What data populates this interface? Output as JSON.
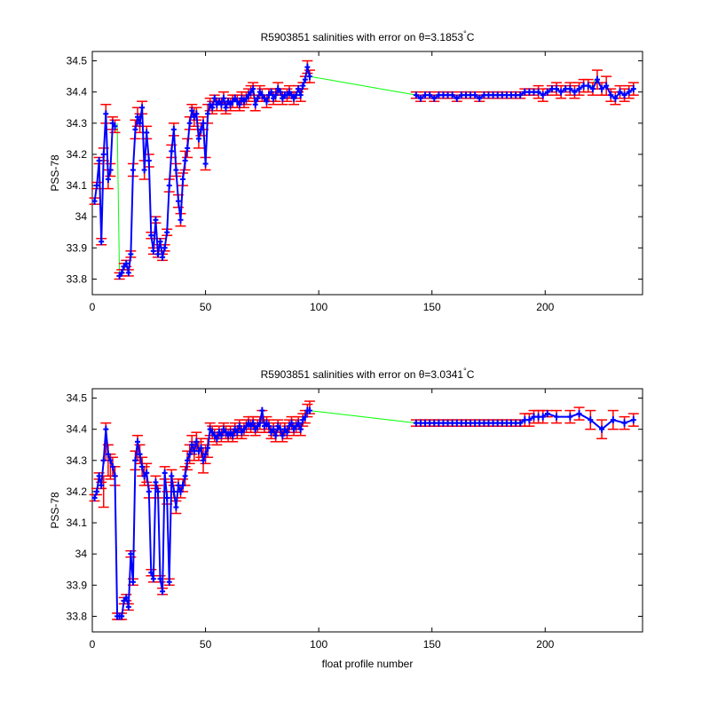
{
  "chart_data": [
    {
      "type": "line",
      "title_prefix": "R5903851 salinities with error on θ=3.1853",
      "title_unit": "C",
      "title_degree": "°",
      "xlabel": "",
      "ylabel": "PSS-78",
      "xlim": [
        0,
        243
      ],
      "ylim": [
        33.75,
        34.53
      ],
      "xticks": [
        0,
        50,
        100,
        150,
        200
      ],
      "yticks": [
        33.8,
        33.9,
        34,
        34.1,
        34.2,
        34.3,
        34.4,
        34.5
      ],
      "ytick_labels": [
        "33.8",
        "33.9",
        "34",
        "34.1",
        "34.2",
        "34.3",
        "34.4",
        "34.5"
      ],
      "colors": {
        "mapped": "#ff0000",
        "float": "#0000ff",
        "connector": "#00ff00"
      },
      "series": [
        {
          "x": [
            1,
            2,
            3,
            4,
            5,
            6,
            7,
            8,
            9,
            10,
            11,
            12,
            13,
            14,
            15,
            16,
            17,
            18,
            19,
            20,
            21,
            22,
            23,
            24,
            25,
            26,
            27,
            28,
            29,
            30,
            31,
            32,
            33,
            34,
            35,
            36,
            37,
            38,
            39,
            40,
            41,
            42,
            43,
            44,
            45,
            46,
            47,
            48,
            49,
            50,
            51,
            52,
            53,
            54,
            55,
            56,
            57,
            58,
            59,
            60,
            61,
            62,
            63,
            64,
            65,
            66,
            67,
            68,
            69,
            70,
            71,
            72,
            73,
            74,
            75,
            76,
            77,
            78,
            79,
            80,
            81,
            82,
            83,
            84,
            85,
            86,
            87,
            88,
            89,
            90,
            91,
            92,
            93,
            94,
            95,
            96
          ],
          "values": [
            34.05,
            34.1,
            34.18,
            33.92,
            34.2,
            34.33,
            34.12,
            34.15,
            34.3,
            34.29,
            null,
            33.81,
            33.82,
            33.84,
            33.85,
            33.82,
            33.88,
            34.15,
            34.28,
            34.32,
            34.3,
            34.35,
            34.15,
            34.27,
            34.18,
            33.94,
            33.89,
            33.99,
            33.88,
            33.92,
            33.87,
            33.9,
            33.95,
            34.1,
            34.21,
            34.28,
            34.15,
            34.05,
            33.99,
            34.12,
            34.18,
            34.22,
            34.3,
            34.34,
            34.32,
            34.33,
            34.25,
            34.28,
            34.3,
            34.17,
            34.33,
            34.36,
            34.35,
            34.38,
            34.36,
            34.37,
            34.36,
            34.38,
            34.35,
            34.37,
            34.36,
            34.37,
            34.38,
            34.37,
            34.36,
            34.38,
            34.37,
            34.38,
            34.39,
            34.4,
            34.41,
            34.36,
            34.38,
            34.4,
            34.39,
            34.38,
            34.37,
            34.39,
            34.4,
            34.38,
            34.39,
            34.41,
            34.4,
            34.38,
            34.39,
            34.39,
            34.4,
            34.39,
            34.38,
            34.39,
            34.41,
            34.39,
            34.42,
            34.44,
            34.48,
            34.45
          ],
          "err": [
            0.01,
            0.01,
            0.01,
            0.01,
            0.02,
            0.03,
            0.03,
            0.02,
            0.02,
            0.02,
            null,
            0.01,
            0.01,
            0.01,
            0.01,
            0.01,
            0.01,
            0.02,
            0.03,
            0.03,
            0.03,
            0.02,
            0.03,
            0.02,
            0.02,
            0.01,
            0.01,
            0.01,
            0.01,
            0.01,
            0.01,
            0.01,
            0.01,
            0.02,
            0.02,
            0.02,
            0.02,
            0.02,
            0.02,
            0.02,
            0.03,
            0.03,
            0.02,
            0.02,
            0.03,
            0.02,
            0.03,
            0.02,
            0.02,
            0.02,
            0.03,
            0.02,
            0.02,
            0.01,
            0.02,
            0.01,
            0.02,
            0.02,
            0.02,
            0.01,
            0.02,
            0.02,
            0.01,
            0.02,
            0.02,
            0.02,
            0.02,
            0.02,
            0.02,
            0.02,
            0.02,
            0.02,
            0.01,
            0.02,
            0.02,
            0.01,
            0.02,
            0.02,
            0.01,
            0.02,
            0.02,
            0.02,
            0.01,
            0.02,
            0.01,
            0.02,
            0.02,
            0.01,
            0.02,
            0.01,
            0.01,
            0.02,
            0.01,
            0.01,
            0.02,
            0.02
          ]
        },
        {
          "x": [
            143,
            145,
            147,
            149,
            151,
            153,
            155,
            157,
            159,
            161,
            163,
            165,
            167,
            169,
            171,
            173,
            175,
            177,
            179,
            181,
            183,
            185,
            187,
            189,
            191,
            193,
            195,
            197,
            199,
            201,
            203,
            205,
            207,
            209,
            211,
            213,
            215,
            217,
            219,
            221,
            223,
            225,
            227,
            229,
            231,
            233,
            235,
            237,
            239
          ],
          "values": [
            34.39,
            34.38,
            34.39,
            34.39,
            34.38,
            34.39,
            34.39,
            34.39,
            34.39,
            34.38,
            34.39,
            34.39,
            34.39,
            34.39,
            34.38,
            34.39,
            34.39,
            34.39,
            34.39,
            34.39,
            34.39,
            34.39,
            34.39,
            34.39,
            34.4,
            34.4,
            34.4,
            34.4,
            34.39,
            34.4,
            34.41,
            34.41,
            34.4,
            34.41,
            34.41,
            34.4,
            34.41,
            34.42,
            34.42,
            34.41,
            34.44,
            34.41,
            34.42,
            34.39,
            34.38,
            34.4,
            34.39,
            34.4,
            34.41
          ],
          "err": [
            0.01,
            0.01,
            0.01,
            0.01,
            0.01,
            0.01,
            0.01,
            0.01,
            0.01,
            0.01,
            0.01,
            0.01,
            0.01,
            0.01,
            0.01,
            0.01,
            0.01,
            0.01,
            0.01,
            0.01,
            0.01,
            0.01,
            0.01,
            0.01,
            0.01,
            0.01,
            0.01,
            0.02,
            0.02,
            0.01,
            0.01,
            0.02,
            0.02,
            0.01,
            0.02,
            0.02,
            0.02,
            0.02,
            0.02,
            0.02,
            0.03,
            0.02,
            0.03,
            0.02,
            0.02,
            0.02,
            0.02,
            0.02,
            0.02
          ]
        }
      ],
      "connectors": [
        [
          [
            11,
            34.3
          ],
          [
            12,
            33.81
          ]
        ],
        [
          [
            96,
            34.45
          ],
          [
            143,
            34.39
          ]
        ],
        [
          [
            220,
            34.41
          ],
          [
            222,
            34.44
          ]
        ]
      ]
    },
    {
      "type": "line",
      "title_prefix": "R5903851 salinities with error on θ=3.0341",
      "title_unit": "C",
      "title_degree": "°",
      "xlabel": "float profile number",
      "ylabel": "PSS-78",
      "xlim": [
        0,
        243
      ],
      "ylim": [
        33.75,
        34.53
      ],
      "xticks": [
        0,
        50,
        100,
        150,
        200
      ],
      "yticks": [
        33.8,
        33.9,
        34,
        34.1,
        34.2,
        34.3,
        34.4,
        34.5
      ],
      "ytick_labels": [
        "33.8",
        "33.9",
        "34",
        "34.1",
        "34.2",
        "34.3",
        "34.4",
        "34.5"
      ],
      "colors": {
        "mapped": "#ff0000",
        "float": "#0000ff",
        "connector": "#00ff00"
      },
      "series": [
        {
          "x": [
            1,
            2,
            3,
            4,
            5,
            6,
            7,
            8,
            9,
            10,
            11,
            12,
            13,
            14,
            15,
            16,
            17,
            18,
            19,
            20,
            21,
            22,
            23,
            24,
            25,
            26,
            27,
            28,
            29,
            30,
            31,
            32,
            33,
            34,
            35,
            36,
            37,
            38,
            39,
            40,
            41,
            42,
            43,
            44,
            45,
            46,
            47,
            48,
            49,
            50,
            51,
            52,
            53,
            54,
            55,
            56,
            57,
            58,
            59,
            60,
            61,
            62,
            63,
            64,
            65,
            66,
            67,
            68,
            69,
            70,
            71,
            72,
            73,
            74,
            75,
            76,
            77,
            78,
            79,
            80,
            81,
            82,
            83,
            84,
            85,
            86,
            87,
            88,
            89,
            90,
            91,
            92,
            93,
            94,
            95,
            96
          ],
          "values": [
            34.18,
            34.2,
            34.25,
            34.22,
            34.3,
            34.4,
            34.32,
            34.3,
            34.28,
            34.25,
            33.8,
            33.8,
            33.8,
            33.85,
            33.86,
            33.83,
            34.0,
            33.91,
            34.3,
            34.36,
            34.32,
            34.28,
            34.25,
            34.26,
            34.2,
            33.94,
            33.92,
            34.23,
            34.2,
            33.92,
            33.88,
            34.26,
            34.18,
            33.91,
            34.25,
            34.2,
            34.15,
            34.22,
            34.2,
            34.22,
            34.25,
            34.3,
            34.32,
            34.35,
            34.33,
            34.36,
            34.33,
            34.34,
            34.3,
            34.32,
            34.34,
            34.4,
            34.39,
            34.38,
            34.37,
            34.39,
            34.38,
            34.4,
            34.39,
            34.38,
            34.39,
            34.38,
            34.4,
            34.39,
            34.41,
            34.39,
            34.4,
            34.41,
            34.42,
            34.41,
            34.42,
            34.4,
            34.41,
            34.42,
            34.46,
            34.41,
            34.42,
            34.41,
            34.39,
            34.4,
            34.38,
            34.41,
            34.4,
            34.38,
            34.4,
            34.39,
            34.41,
            34.42,
            34.4,
            34.41,
            34.42,
            34.4,
            34.43,
            34.44,
            34.46,
            34.46
          ],
          "err": [
            0.01,
            0.01,
            0.01,
            0.01,
            0.05,
            0.06,
            0.05,
            0.04,
            0.03,
            0.03,
            0.01,
            0.01,
            0.01,
            0.01,
            0.01,
            0.01,
            0.01,
            0.01,
            0.03,
            0.04,
            0.03,
            0.03,
            0.03,
            0.03,
            0.02,
            0.01,
            0.01,
            0.02,
            0.02,
            0.01,
            0.01,
            0.02,
            0.02,
            0.01,
            0.02,
            0.02,
            0.02,
            0.02,
            0.02,
            0.02,
            0.03,
            0.03,
            0.03,
            0.03,
            0.03,
            0.03,
            0.03,
            0.03,
            0.04,
            0.03,
            0.03,
            0.02,
            0.02,
            0.02,
            0.02,
            0.02,
            0.02,
            0.02,
            0.02,
            0.02,
            0.02,
            0.02,
            0.02,
            0.02,
            0.02,
            0.02,
            0.02,
            0.02,
            0.02,
            0.02,
            0.02,
            0.02,
            0.02,
            0.02,
            0.02,
            0.02,
            0.02,
            0.02,
            0.02,
            0.02,
            0.02,
            0.02,
            0.02,
            0.02,
            0.02,
            0.02,
            0.02,
            0.02,
            0.02,
            0.02,
            0.02,
            0.02,
            0.02,
            0.02,
            0.02,
            0.02
          ],
          "centers": [
            34.18,
            34.2,
            34.25,
            34.22,
            34.2,
            34.36,
            34.3,
            34.28,
            34.28,
            34.25,
            33.8,
            33.8,
            33.8,
            33.85,
            33.86,
            33.83,
            34.0,
            33.91,
            34.3,
            34.34,
            34.32,
            34.28,
            34.25,
            34.26,
            34.2,
            33.94,
            33.92,
            34.23,
            34.2,
            33.92,
            33.88,
            34.26,
            34.18,
            33.91,
            34.25,
            34.2,
            34.15,
            34.22,
            34.2,
            34.22,
            34.25,
            34.3,
            34.32,
            34.35,
            34.33,
            34.36,
            34.33,
            34.34,
            34.3,
            34.32,
            34.34,
            34.4,
            34.39,
            34.38,
            34.37,
            34.39,
            34.38,
            34.4,
            34.39,
            34.38,
            34.39,
            34.38,
            34.4,
            34.39,
            34.41,
            34.39,
            34.4,
            34.41,
            34.42,
            34.41,
            34.42,
            34.4,
            34.41,
            34.42,
            34.44,
            34.41,
            34.42,
            34.41,
            34.39,
            34.4,
            34.38,
            34.41,
            34.4,
            34.38,
            34.4,
            34.39,
            34.41,
            34.42,
            34.4,
            34.41,
            34.42,
            34.4,
            34.43,
            34.44,
            34.46,
            34.47
          ]
        },
        {
          "x": [
            143,
            145,
            147,
            149,
            151,
            153,
            155,
            157,
            159,
            161,
            163,
            165,
            167,
            169,
            171,
            173,
            175,
            177,
            179,
            181,
            183,
            185,
            187,
            189,
            191,
            193,
            195,
            197,
            199,
            201,
            205,
            211,
            215,
            220,
            225,
            230,
            235,
            239
          ],
          "values": [
            34.42,
            34.42,
            34.42,
            34.42,
            34.42,
            34.42,
            34.42,
            34.42,
            34.42,
            34.42,
            34.42,
            34.42,
            34.42,
            34.42,
            34.42,
            34.42,
            34.42,
            34.42,
            34.42,
            34.42,
            34.42,
            34.42,
            34.42,
            34.42,
            34.43,
            34.43,
            34.44,
            34.44,
            34.44,
            34.45,
            34.44,
            34.44,
            34.45,
            34.43,
            34.4,
            34.43,
            34.42,
            34.43
          ],
          "err": [
            0.01,
            0.01,
            0.01,
            0.01,
            0.01,
            0.01,
            0.01,
            0.01,
            0.01,
            0.01,
            0.01,
            0.01,
            0.01,
            0.01,
            0.01,
            0.01,
            0.01,
            0.01,
            0.01,
            0.01,
            0.01,
            0.01,
            0.01,
            0.01,
            0.02,
            0.02,
            0.02,
            0.02,
            0.02,
            0.01,
            0.02,
            0.02,
            0.02,
            0.03,
            0.03,
            0.03,
            0.02,
            0.02
          ]
        }
      ],
      "connectors": [
        [
          [
            96,
            34.46
          ],
          [
            143,
            34.42
          ]
        ]
      ]
    }
  ]
}
